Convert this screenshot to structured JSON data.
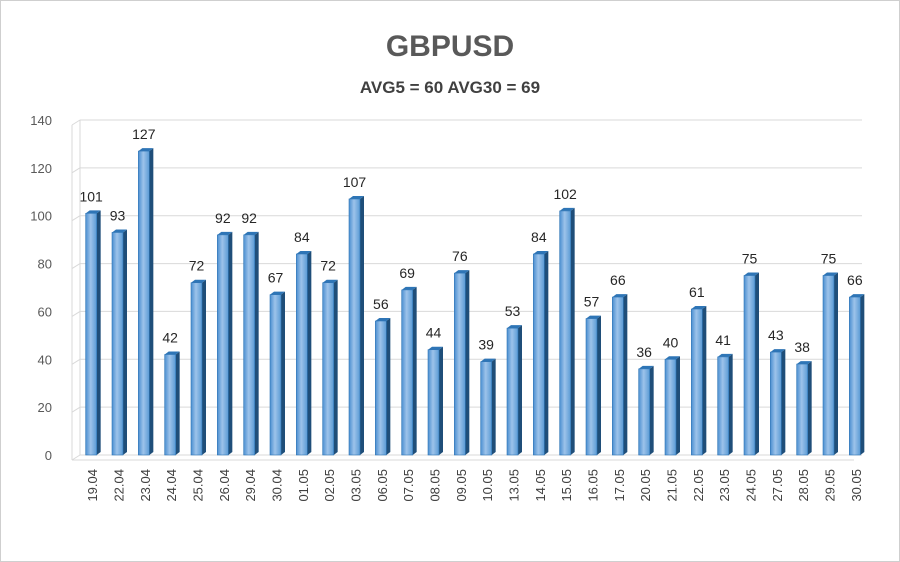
{
  "chart_data": {
    "type": "bar",
    "title": "GBPUSD",
    "subtitle": "AVG5 = 60 AVG30 = 69",
    "xlabel": "",
    "ylabel": "",
    "ylim": [
      0,
      140
    ],
    "yticks": [
      0,
      20,
      40,
      60,
      80,
      100,
      120,
      140
    ],
    "grid": true,
    "categories": [
      "19.04",
      "22.04",
      "23.04",
      "24.04",
      "25.04",
      "26.04",
      "29.04",
      "30.04",
      "01.05",
      "02.05",
      "03.05",
      "06.05",
      "07.05",
      "08.05",
      "09.05",
      "10.05",
      "13.05",
      "14.05",
      "15.05",
      "16.05",
      "17.05",
      "20.05",
      "21.05",
      "22.05",
      "23.05",
      "24.05",
      "27.05",
      "28.05",
      "29.05",
      "30.05"
    ],
    "values": [
      101,
      93,
      127,
      42,
      72,
      92,
      92,
      67,
      84,
      72,
      107,
      56,
      69,
      44,
      76,
      39,
      53,
      84,
      102,
      57,
      66,
      36,
      40,
      61,
      41,
      75,
      43,
      38,
      75,
      66
    ],
    "colors": {
      "bar_light": "#9dc3ea",
      "bar_mid": "#5b9bd5",
      "bar_dark": "#2e75b6",
      "bar_side": "#1f4e79",
      "grid": "#d9d9d9"
    }
  }
}
